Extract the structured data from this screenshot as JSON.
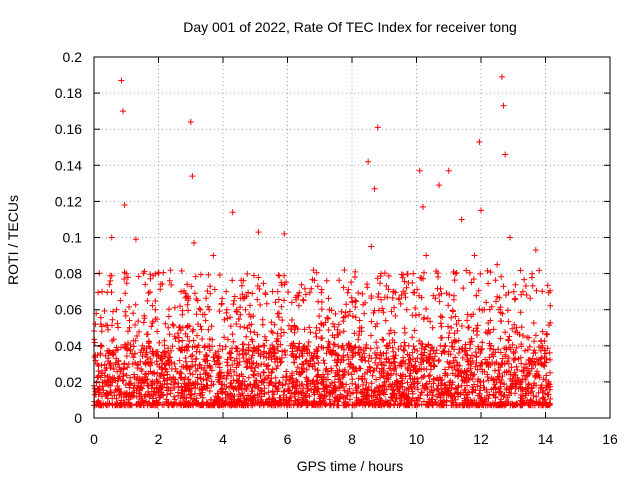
{
  "chart_data": {
    "type": "scatter",
    "title": "Day 001 of 2022, Rate Of TEC Index for receiver tong",
    "xlabel": "GPS time / hours",
    "ylabel": "ROTI / TECUs",
    "xlim": [
      0,
      16
    ],
    "ylim": [
      0,
      0.2
    ],
    "x_ticks": [
      "0",
      "2",
      "4",
      "6",
      "8",
      "10",
      "12",
      "14",
      "16"
    ],
    "y_ticks": [
      "0",
      "0.02",
      "0.04",
      "0.06",
      "0.08",
      "0.1",
      "0.12",
      "0.14",
      "0.16",
      "0.18",
      "0.2"
    ],
    "grid": true,
    "marker": "+",
    "color": "#ff0000",
    "series": [
      {
        "name": "ROTI",
        "x": [
          0.1,
          0.25,
          0.4,
          0.55,
          0.7,
          0.85,
          0.9,
          0.95,
          1.0,
          1.1,
          1.3,
          1.5,
          1.7,
          1.9,
          2.1,
          2.3,
          2.5,
          2.7,
          2.9,
          3.0,
          3.05,
          3.1,
          3.3,
          3.5,
          3.7,
          3.9,
          4.1,
          4.3,
          4.5,
          4.7,
          4.9,
          5.1,
          5.3,
          5.5,
          5.7,
          5.9,
          6.1,
          6.3,
          6.5,
          6.7,
          6.9,
          7.1,
          7.3,
          7.5,
          7.7,
          7.9,
          8.1,
          8.3,
          8.5,
          8.6,
          8.7,
          8.8,
          8.9,
          9.1,
          9.3,
          9.5,
          9.7,
          9.9,
          10.1,
          10.2,
          10.3,
          10.5,
          10.7,
          10.9,
          11.0,
          11.2,
          11.4,
          11.6,
          11.8,
          11.95,
          12.0,
          12.1,
          12.3,
          12.5,
          12.65,
          12.7,
          12.75,
          12.9,
          13.1,
          13.3,
          13.5,
          13.7,
          13.9,
          14.1
        ],
        "y": [
          0.03,
          0.07,
          0.02,
          0.1,
          0.06,
          0.187,
          0.17,
          0.118,
          0.08,
          0.05,
          0.099,
          0.04,
          0.03,
          0.06,
          0.025,
          0.05,
          0.03,
          0.07,
          0.045,
          0.164,
          0.134,
          0.097,
          0.06,
          0.025,
          0.09,
          0.04,
          0.07,
          0.114,
          0.035,
          0.06,
          0.03,
          0.103,
          0.045,
          0.025,
          0.07,
          0.102,
          0.04,
          0.02,
          0.065,
          0.03,
          0.05,
          0.02,
          0.06,
          0.025,
          0.04,
          0.03,
          0.065,
          0.05,
          0.142,
          0.095,
          0.127,
          0.161,
          0.08,
          0.04,
          0.07,
          0.03,
          0.06,
          0.08,
          0.137,
          0.117,
          0.09,
          0.05,
          0.129,
          0.04,
          0.137,
          0.08,
          0.11,
          0.05,
          0.09,
          0.153,
          0.115,
          0.06,
          0.04,
          0.085,
          0.189,
          0.173,
          0.146,
          0.1,
          0.05,
          0.07,
          0.03,
          0.093,
          0.04,
          0.02
        ]
      }
    ]
  }
}
